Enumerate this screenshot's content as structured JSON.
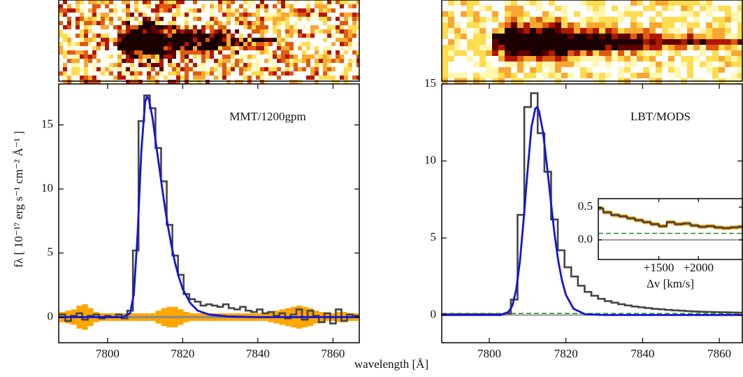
{
  "figure": {
    "xlabel": "wavelength [Å]",
    "ylabel": "fλ [ 10⁻¹⁷ erg s⁻¹ cm⁻² Å⁻¹ ]"
  },
  "chart_data": [
    {
      "type": "line",
      "annotation": "MMT/1200gpm",
      "xlim": [
        7787,
        7867
      ],
      "ylim": [
        -2,
        18.2
      ],
      "xticks": [
        7800,
        7820,
        7840,
        7860
      ],
      "yticks": [
        0,
        5,
        10,
        15
      ],
      "reference_lines": [
        {
          "value": 0,
          "color": "#8a8a8a",
          "width": 3
        }
      ],
      "series": [
        {
          "style": "step",
          "color": "#444444",
          "band_color": "#ffa500",
          "x": [
            7788,
            7789.5,
            7791,
            7792.5,
            7794,
            7795.5,
            7797,
            7798.5,
            7800,
            7801.5,
            7803,
            7804.5,
            7806,
            7807.5,
            7809,
            7810.5,
            7812,
            7813.5,
            7815,
            7816.5,
            7818,
            7819.5,
            7821,
            7822.5,
            7824,
            7825.5,
            7827,
            7828.5,
            7830,
            7831.5,
            7833,
            7834.5,
            7836,
            7837.5,
            7839,
            7840.5,
            7842,
            7843.5,
            7845,
            7846.5,
            7848,
            7849.5,
            7851,
            7852.5,
            7854,
            7855.5,
            7857,
            7858.5,
            7860,
            7861.5,
            7863,
            7864.5,
            7866
          ],
          "values": [
            0.2,
            -0.3,
            0.1,
            0.3,
            -0.2,
            0.1,
            0.2,
            -0.1,
            0.1,
            0.0,
            0.2,
            -0.1,
            0.5,
            5.2,
            15.3,
            17.3,
            16.3,
            13.2,
            10.6,
            7.2,
            4.8,
            3.3,
            1.8,
            1.4,
            1.2,
            0.9,
            1.0,
            0.9,
            0.8,
            1.0,
            0.7,
            0.6,
            0.8,
            0.5,
            0.4,
            0.6,
            0.3,
            0.4,
            0.1,
            0.3,
            -0.1,
            0.2,
            0.6,
            -0.2,
            0.5,
            0.1,
            -0.4,
            0.3,
            -0.5,
            0.6,
            -0.3,
            0.2,
            0.1
          ],
          "error": [
            0.4,
            0.5,
            0.6,
            0.9,
            1.0,
            0.7,
            0.4,
            0.3,
            0.3,
            0.3,
            0.3,
            0.3,
            0.3,
            0.3,
            0.3,
            0.3,
            0.3,
            0.5,
            0.7,
            0.8,
            0.8,
            0.6,
            0.4,
            0.3,
            0.3,
            0.3,
            0.3,
            0.3,
            0.3,
            0.3,
            0.3,
            0.3,
            0.3,
            0.3,
            0.3,
            0.3,
            0.3,
            0.4,
            0.5,
            0.6,
            0.7,
            0.8,
            0.9,
            0.8,
            0.7,
            0.5,
            0.4,
            0.3,
            0.3,
            0.4,
            0.4,
            0.3,
            0.3
          ]
        },
        {
          "style": "line",
          "color": "#1414d8",
          "x": [
            7787,
            7804,
            7806,
            7807,
            7808,
            7809,
            7810,
            7810.5,
            7811,
            7812,
            7813,
            7814,
            7815,
            7816,
            7817,
            7818,
            7819,
            7820,
            7822,
            7824,
            7827,
            7832,
            7840,
            7867
          ],
          "values": [
            0,
            0,
            0.3,
            1.8,
            6.5,
            13,
            16.8,
            17.2,
            17.0,
            15.5,
            13.3,
            11.2,
            9.1,
            7.2,
            5.6,
            4.2,
            3.1,
            2.2,
            1.1,
            0.5,
            0.2,
            0.05,
            0,
            0
          ]
        }
      ]
    },
    {
      "type": "line",
      "annotation": "LBT/MODS",
      "xlim": [
        7787.6,
        7866
      ],
      "ylim": [
        -1.8,
        15
      ],
      "xticks": [
        7800,
        7820,
        7840,
        7860
      ],
      "yticks": [
        0,
        5,
        10,
        15
      ],
      "reference_lines": [
        {
          "value": 0,
          "color": "#9a9a9a",
          "width": 2
        },
        {
          "value": 0.1,
          "color": "#2a8a2a",
          "width": 1.5,
          "dashed": true
        }
      ],
      "series": [
        {
          "style": "step",
          "color": "#444444",
          "x": [
            7789,
            7790.75,
            7792.5,
            7794.25,
            7796,
            7797.75,
            7799.5,
            7801.25,
            7803,
            7804.75,
            7806.5,
            7808.25,
            7810,
            7811.75,
            7813.5,
            7815.25,
            7817,
            7818.75,
            7820.5,
            7822.25,
            7824,
            7825.75,
            7827.5,
            7829.25,
            7831,
            7832.75,
            7834.5,
            7836.25,
            7838,
            7839.75,
            7841.5,
            7843.25,
            7845,
            7846.75,
            7848.5,
            7850.25,
            7852,
            7853.75,
            7855.5,
            7857.25,
            7859,
            7860.75,
            7862.5,
            7864.25,
            7866
          ],
          "values": [
            0.05,
            0.05,
            0.05,
            0.05,
            0.05,
            0.05,
            0.05,
            0.05,
            0.05,
            0.1,
            1.0,
            6.5,
            13.5,
            14.4,
            11.8,
            9.3,
            6.2,
            4.2,
            3.1,
            2.5,
            1.9,
            1.5,
            1.25,
            1.05,
            0.9,
            0.8,
            0.7,
            0.62,
            0.55,
            0.5,
            0.45,
            0.4,
            0.37,
            0.33,
            0.3,
            0.28,
            0.25,
            0.23,
            0.21,
            0.2,
            0.19,
            0.18,
            0.17,
            0.16,
            0.15
          ]
        },
        {
          "style": "line",
          "color": "#1414d8",
          "x": [
            7787,
            7803,
            7805,
            7806,
            7807,
            7808,
            7809,
            7810,
            7811,
            7812,
            7812.5,
            7813,
            7814,
            7815,
            7816,
            7817,
            7818,
            7819,
            7820,
            7822,
            7825,
            7830,
            7866
          ],
          "values": [
            0,
            0,
            0.2,
            0.6,
            1.6,
            3.5,
            6.3,
            9.4,
            12.2,
            13.4,
            13.5,
            13.2,
            11.9,
            9.8,
            7.5,
            5.3,
            3.5,
            2.2,
            1.3,
            0.4,
            0.05,
            0,
            0
          ]
        }
      ],
      "inset": {
        "xlabel": "Δv  [km/s]",
        "xlim": [
          737,
          2553
        ],
        "ylim": [
          -0.3,
          0.63
        ],
        "xticks": [
          {
            "value": 1500,
            "label": "+1500"
          },
          {
            "value": 2000,
            "label": "+2000"
          }
        ],
        "yticks": [
          {
            "value": 0,
            "label": "0.0"
          },
          0.5
        ],
        "reference_lines": [
          {
            "value": 0,
            "color": "#9a9a9a",
            "width": 2
          },
          {
            "value": 0.1,
            "color": "#2a8a2a",
            "width": 1.5,
            "dashed": true
          }
        ],
        "series": [
          {
            "style": "step",
            "color": "#444444",
            "band_color": "#ffa500",
            "x": [
              750,
              850,
              950,
              1050,
              1150,
              1250,
              1350,
              1450,
              1550,
              1650,
              1750,
              1850,
              1950,
              2050,
              2150,
              2250,
              2350,
              2450,
              2550
            ],
            "values": [
              0.48,
              0.42,
              0.38,
              0.36,
              0.33,
              0.3,
              0.27,
              0.24,
              0.21,
              0.27,
              0.24,
              0.25,
              0.22,
              0.2,
              0.21,
              0.19,
              0.18,
              0.19,
              0.2
            ],
            "error": [
              0.03,
              0.03,
              0.03,
              0.03,
              0.03,
              0.03,
              0.03,
              0.03,
              0.03,
              0.03,
              0.03,
              0.03,
              0.03,
              0.03,
              0.03,
              0.03,
              0.03,
              0.03,
              0.03
            ]
          }
        ]
      }
    }
  ]
}
